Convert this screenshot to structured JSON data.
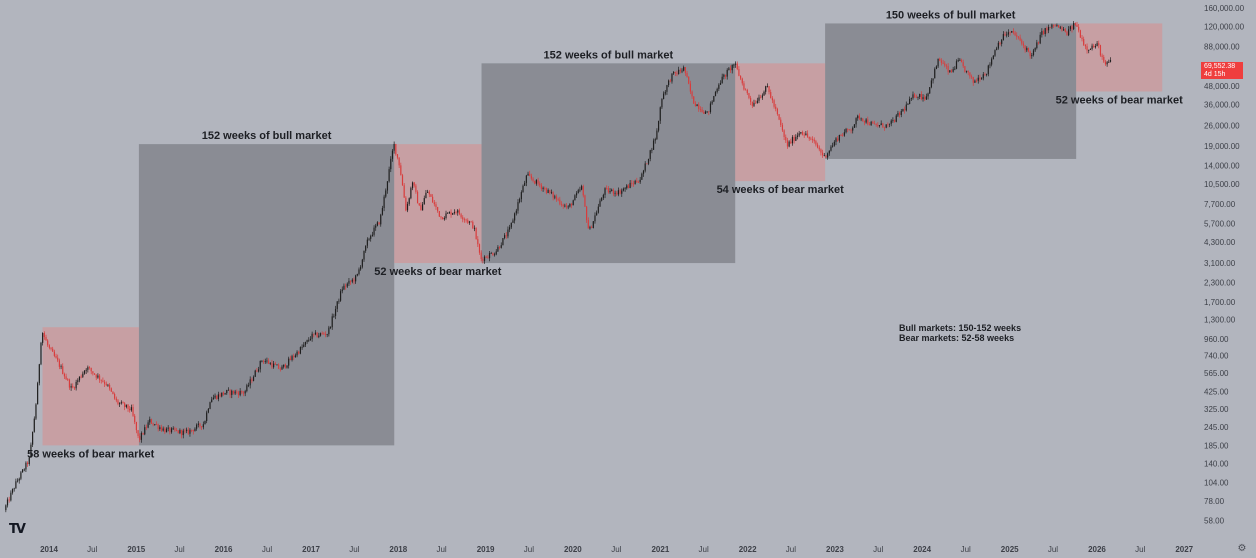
{
  "chart_data": {
    "type": "candlestick",
    "title": "",
    "xlabel": "",
    "ylabel": "",
    "y_scale": "log",
    "ylim": [
      50,
      165000
    ],
    "xlim": [
      "2013-07-01",
      "2027-02-15"
    ],
    "colors": {
      "up": "#1f1f1f",
      "down": "#d83c3c",
      "bull_box": "#7a7d84",
      "bear_box": "#d98c8c",
      "price_tag": "#ef3e3e"
    },
    "y_ticks": [
      "160,000.00",
      "120,000.00",
      "88,000.00",
      "64,000.00",
      "48,000.00",
      "36,000.00",
      "26,000.00",
      "19,000.00",
      "14,000.00",
      "10,500.00",
      "7,700.00",
      "5,700.00",
      "4,300.00",
      "3,100.00",
      "2,300.00",
      "1,700.00",
      "1,300.00",
      "960.00",
      "740.00",
      "565.00",
      "425.00",
      "325.00",
      "245.00",
      "185.00",
      "140.00",
      "104.00",
      "78.00",
      "58.00"
    ],
    "x_ticks": [
      {
        "label": "2014",
        "date": "2014-01-01",
        "year": true
      },
      {
        "label": "Jul",
        "date": "2014-07-01",
        "year": false
      },
      {
        "label": "2015",
        "date": "2015-01-01",
        "year": true
      },
      {
        "label": "Jul",
        "date": "2015-07-01",
        "year": false
      },
      {
        "label": "2016",
        "date": "2016-01-01",
        "year": true
      },
      {
        "label": "Jul",
        "date": "2016-07-01",
        "year": false
      },
      {
        "label": "2017",
        "date": "2017-01-01",
        "year": true
      },
      {
        "label": "Jul",
        "date": "2017-07-01",
        "year": false
      },
      {
        "label": "2018",
        "date": "2018-01-01",
        "year": true
      },
      {
        "label": "Jul",
        "date": "2018-07-01",
        "year": false
      },
      {
        "label": "2019",
        "date": "2019-01-01",
        "year": true
      },
      {
        "label": "Jul",
        "date": "2019-07-01",
        "year": false
      },
      {
        "label": "2020",
        "date": "2020-01-01",
        "year": true
      },
      {
        "label": "Jul",
        "date": "2020-07-01",
        "year": false
      },
      {
        "label": "2021",
        "date": "2021-01-01",
        "year": true
      },
      {
        "label": "Jul",
        "date": "2021-07-01",
        "year": false
      },
      {
        "label": "2022",
        "date": "2022-01-01",
        "year": true
      },
      {
        "label": "Jul",
        "date": "2022-07-01",
        "year": false
      },
      {
        "label": "2023",
        "date": "2023-01-01",
        "year": true
      },
      {
        "label": "Jul",
        "date": "2023-07-01",
        "year": false
      },
      {
        "label": "2024",
        "date": "2024-01-01",
        "year": true
      },
      {
        "label": "Jul",
        "date": "2024-07-01",
        "year": false
      },
      {
        "label": "2025",
        "date": "2025-01-01",
        "year": true
      },
      {
        "label": "Jul",
        "date": "2025-07-01",
        "year": false
      },
      {
        "label": "2026",
        "date": "2026-01-01",
        "year": true
      },
      {
        "label": "Jul",
        "date": "2026-07-01",
        "year": false
      },
      {
        "label": "2027",
        "date": "2027-01-01",
        "year": true
      }
    ],
    "price_path": [
      [
        "2013-07-01",
        68
      ],
      [
        "2013-08-15",
        100
      ],
      [
        "2013-10-15",
        150
      ],
      [
        "2013-11-15",
        400
      ],
      [
        "2013-12-05",
        1100
      ],
      [
        "2014-01-01",
        850
      ],
      [
        "2014-02-15",
        650
      ],
      [
        "2014-04-10",
        440
      ],
      [
        "2014-06-10",
        620
      ],
      [
        "2014-09-01",
        480
      ],
      [
        "2014-10-15",
        360
      ],
      [
        "2014-12-15",
        320
      ],
      [
        "2015-01-15",
        200
      ],
      [
        "2015-03-01",
        270
      ],
      [
        "2015-05-01",
        235
      ],
      [
        "2015-08-01",
        225
      ],
      [
        "2015-10-15",
        260
      ],
      [
        "2015-11-10",
        380
      ],
      [
        "2016-01-15",
        420
      ],
      [
        "2016-04-01",
        420
      ],
      [
        "2016-06-15",
        700
      ],
      [
        "2016-09-01",
        600
      ],
      [
        "2016-12-15",
        900
      ],
      [
        "2017-01-05",
        1000
      ],
      [
        "2017-03-15",
        1050
      ],
      [
        "2017-05-15",
        2100
      ],
      [
        "2017-07-15",
        2500
      ],
      [
        "2017-09-01",
        4500
      ],
      [
        "2017-10-20",
        6000
      ],
      [
        "2017-12-17",
        19500
      ],
      [
        "2018-01-10",
        14000
      ],
      [
        "2018-02-06",
        7000
      ],
      [
        "2018-03-05",
        11000
      ],
      [
        "2018-04-05",
        7000
      ],
      [
        "2018-05-05",
        9500
      ],
      [
        "2018-07-01",
        6300
      ],
      [
        "2018-09-01",
        7000
      ],
      [
        "2018-11-15",
        5500
      ],
      [
        "2018-12-15",
        3300
      ],
      [
        "2019-02-15",
        3700
      ],
      [
        "2019-04-15",
        5200
      ],
      [
        "2019-06-26",
        12000
      ],
      [
        "2019-09-01",
        10000
      ],
      [
        "2019-12-15",
        7200
      ],
      [
        "2020-02-10",
        10000
      ],
      [
        "2020-03-12",
        5000
      ],
      [
        "2020-05-15",
        9500
      ],
      [
        "2020-07-15",
        9300
      ],
      [
        "2020-10-15",
        11500
      ],
      [
        "2020-12-20",
        23000
      ],
      [
        "2021-01-10",
        40000
      ],
      [
        "2021-02-20",
        56000
      ],
      [
        "2021-04-14",
        63000
      ],
      [
        "2021-05-20",
        38000
      ],
      [
        "2021-07-20",
        31000
      ],
      [
        "2021-09-05",
        50000
      ],
      [
        "2021-11-10",
        68000
      ],
      [
        "2021-12-20",
        47000
      ],
      [
        "2022-01-25",
        36000
      ],
      [
        "2022-03-28",
        47000
      ],
      [
        "2022-05-10",
        30000
      ],
      [
        "2022-06-18",
        19000
      ],
      [
        "2022-08-15",
        24000
      ],
      [
        "2022-10-15",
        19500
      ],
      [
        "2022-11-21",
        16000
      ],
      [
        "2023-01-20",
        22000
      ],
      [
        "2023-03-15",
        25000
      ],
      [
        "2023-04-14",
        30000
      ],
      [
        "2023-06-15",
        26000
      ],
      [
        "2023-08-20",
        26000
      ],
      [
        "2023-10-23",
        34000
      ],
      [
        "2023-12-05",
        42000
      ],
      [
        "2024-01-20",
        40000
      ],
      [
        "2024-03-14",
        73000
      ],
      [
        "2024-05-01",
        58000
      ],
      [
        "2024-06-05",
        71000
      ],
      [
        "2024-08-05",
        51000
      ],
      [
        "2024-10-01",
        60000
      ],
      [
        "2024-11-12",
        90000
      ],
      [
        "2024-12-17",
        107000
      ],
      [
        "2025-01-20",
        109000
      ],
      [
        "2025-04-07",
        76000
      ],
      [
        "2025-05-22",
        111000
      ],
      [
        "2025-07-14",
        123000
      ],
      [
        "2025-08-30",
        108000
      ],
      [
        "2025-10-06",
        126000
      ],
      [
        "2025-11-20",
        86000
      ],
      [
        "2026-01-10",
        90000
      ],
      [
        "2026-02-05",
        65000
      ],
      [
        "2026-02-25",
        69552
      ]
    ],
    "bull_markets": [
      {
        "start": "2015-01-12",
        "end": "2017-12-15",
        "low": 185,
        "high": 19500,
        "label": "152 weeks of bull market",
        "label_pos": "above"
      },
      {
        "start": "2018-12-15",
        "end": "2021-11-10",
        "low": 3100,
        "high": 68000,
        "label": "152 weeks of bull market",
        "label_pos": "above"
      },
      {
        "start": "2022-11-21",
        "end": "2025-10-06",
        "low": 15500,
        "high": 126000,
        "label": "150 weeks of bull market",
        "label_pos": "above"
      }
    ],
    "bear_markets": [
      {
        "start": "2013-12-05",
        "end": "2015-01-12",
        "low": 185,
        "high": 1150,
        "label": "58 weeks of bear market",
        "label_pos": "below"
      },
      {
        "start": "2017-12-15",
        "end": "2018-12-15",
        "low": 3100,
        "high": 19500,
        "label": "52 weeks of bear market",
        "label_pos": "below"
      },
      {
        "start": "2021-11-10",
        "end": "2022-11-21",
        "low": 11000,
        "high": 68000,
        "label": "54 weeks of bear market",
        "label_pos": "below"
      },
      {
        "start": "2025-10-06",
        "end": "2026-10-01",
        "low": 44000,
        "high": 126000,
        "label": "52 weeks of bear market",
        "label_pos": "below"
      }
    ],
    "summary": [
      "Bull markets: 150-152 weeks",
      "Bear markets: 52-58 weeks"
    ],
    "current_price": {
      "value": "69,552.38",
      "countdown": "4d 15h"
    }
  },
  "ui": {
    "logo": "TV",
    "settings_icon": "gear-icon"
  }
}
